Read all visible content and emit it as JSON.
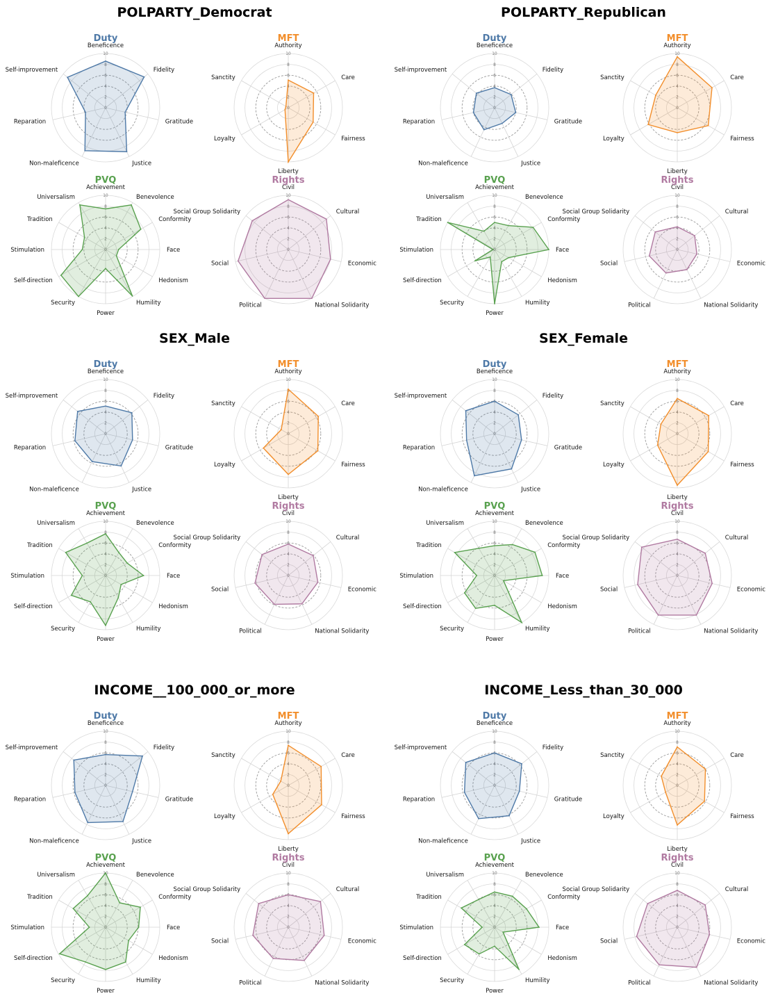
{
  "chart_data": [
    {
      "type": "radar-panel-group",
      "title": "POLPARTY_Democrat",
      "charts": [
        {
          "type": "radar",
          "title": "Duty",
          "color": "#4e79a7",
          "axes": [
            "Beneficence",
            "Fidelity",
            "Gratitude",
            "Justice",
            "Non-maleficence",
            "Reparation",
            "Self-improvement"
          ],
          "values": [
            8.6,
            9.1,
            3.7,
            9.0,
            8.8,
            3.8,
            9.0
          ],
          "ylim": [
            0,
            10
          ],
          "ticks": [
            0,
            2,
            4,
            6,
            8,
            10
          ]
        },
        {
          "type": "radar",
          "title": "MFT",
          "color": "#f28e2b",
          "axes": [
            "Authority",
            "Care",
            "Fairness",
            "Liberty",
            "Loyalty",
            "Sanctity"
          ],
          "values": [
            5.1,
            5.4,
            5.3,
            10.0,
            0.7,
            0.5
          ],
          "ylim": [
            0,
            10
          ],
          "ticks": [
            0,
            2,
            4,
            6,
            8,
            10
          ]
        },
        {
          "type": "radar",
          "title": "PVQ",
          "color": "#59a14f",
          "axes": [
            "Achievement",
            "Benevolence",
            "Conformity",
            "Face",
            "Hedonism",
            "Humility",
            "Power",
            "Security",
            "Self-direction",
            "Stimulation",
            "Tradition",
            "Universalism"
          ],
          "values": [
            7.5,
            9.5,
            7.5,
            2.4,
            2.3,
            9.9,
            3.5,
            10.0,
            9.5,
            4.3,
            4.5,
            9.5
          ],
          "ylim": [
            0,
            10
          ],
          "ticks": [
            0,
            2,
            4,
            6,
            8,
            10
          ]
        },
        {
          "type": "radar",
          "title": "Rights",
          "color": "#b07aa1",
          "axes": [
            "Civil",
            "Cultural",
            "Economic",
            "National Solidarity",
            "Political",
            "Social",
            "Social Group Solidarity"
          ],
          "values": [
            9.2,
            9.0,
            8.0,
            10.0,
            10.0,
            9.5,
            8.5
          ],
          "ylim": [
            0,
            10
          ],
          "ticks": [
            0,
            2,
            4,
            6,
            8,
            10
          ]
        }
      ]
    },
    {
      "type": "radar-panel-group",
      "title": "POLPARTY_Republican",
      "charts": [
        {
          "type": "radar",
          "title": "Duty",
          "color": "#4e79a7",
          "axes": [
            "Beneficence",
            "Fidelity",
            "Gratitude",
            "Justice",
            "Non-maleficence",
            "Reparation",
            "Self-improvement"
          ],
          "values": [
            3.7,
            3.9,
            4.0,
            3.2,
            4.5,
            4.0,
            4.3
          ],
          "ylim": [
            0,
            10
          ],
          "ticks": [
            0,
            2,
            4,
            6,
            8,
            10
          ]
        },
        {
          "type": "radar",
          "title": "MFT",
          "color": "#f28e2b",
          "axes": [
            "Authority",
            "Care",
            "Fairness",
            "Liberty",
            "Loyalty",
            "Sanctity"
          ],
          "values": [
            9.4,
            7.4,
            6.6,
            4.6,
            6.2,
            4.6
          ],
          "ylim": [
            0,
            10
          ],
          "ticks": [
            0,
            2,
            4,
            6,
            8,
            10
          ]
        },
        {
          "type": "radar",
          "title": "PVQ",
          "color": "#59a14f",
          "axes": [
            "Achievement",
            "Benevolence",
            "Conformity",
            "Face",
            "Hedonism",
            "Humility",
            "Power",
            "Security",
            "Self-direction",
            "Stimulation",
            "Tradition",
            "Universalism"
          ],
          "values": [
            5.0,
            5.1,
            8.2,
            10.0,
            3.0,
            2.6,
            10.0,
            1.6,
            4.2,
            0.3,
            10.0,
            3.9
          ],
          "ylim": [
            0,
            10
          ],
          "ticks": [
            0,
            2,
            4,
            6,
            8,
            10
          ]
        },
        {
          "type": "radar",
          "title": "Rights",
          "color": "#b07aa1",
          "axes": [
            "Civil",
            "Cultural",
            "Economic",
            "National Solidarity",
            "Political",
            "Social",
            "Social Group Solidarity"
          ],
          "values": [
            4.2,
            4.1,
            3.7,
            4.1,
            4.8,
            5.3,
            5.2
          ],
          "ylim": [
            0,
            10
          ],
          "ticks": [
            0,
            2,
            4,
            6,
            8,
            10
          ]
        }
      ]
    },
    {
      "type": "radar-panel-group",
      "title": "SEX_Male",
      "charts": [
        {
          "type": "radar",
          "title": "Duty",
          "color": "#4e79a7",
          "axes": [
            "Beneficence",
            "Fidelity",
            "Gratitude",
            "Justice",
            "Non-maleficence",
            "Reparation",
            "Self-improvement"
          ],
          "values": [
            5.1,
            6.2,
            5.1,
            6.6,
            5.7,
            5.8,
            6.6
          ],
          "ylim": [
            0,
            10
          ],
          "ticks": [
            0,
            2,
            4,
            6,
            8,
            10
          ]
        },
        {
          "type": "radar",
          "title": "MFT",
          "color": "#f28e2b",
          "axes": [
            "Authority",
            "Care",
            "Fairness",
            "Liberty",
            "Loyalty",
            "Sanctity"
          ],
          "values": [
            8.2,
            6.4,
            6.3,
            7.5,
            5.3,
            1.5
          ],
          "ylim": [
            0,
            10
          ],
          "ticks": [
            0,
            2,
            4,
            6,
            8,
            10
          ]
        },
        {
          "type": "radar",
          "title": "PVQ",
          "color": "#59a14f",
          "axes": [
            "Achievement",
            "Benevolence",
            "Conformity",
            "Face",
            "Hedonism",
            "Humility",
            "Power",
            "Security",
            "Self-direction",
            "Stimulation",
            "Tradition",
            "Universalism"
          ],
          "values": [
            7.7,
            4.9,
            4.6,
            7.0,
            3.3,
            4.7,
            9.2,
            5.6,
            7.3,
            4.3,
            8.5,
            6.9
          ],
          "ylim": [
            0,
            10
          ],
          "ticks": [
            0,
            2,
            4,
            6,
            8,
            10
          ]
        },
        {
          "type": "radar",
          "title": "Rights",
          "color": "#b07aa1",
          "axes": [
            "Civil",
            "Cultural",
            "Economic",
            "National Solidarity",
            "Political",
            "Social",
            "Social Group Solidarity"
          ],
          "values": [
            5.8,
            5.9,
            5.6,
            5.8,
            5.9,
            6.3,
            6.2
          ],
          "ylim": [
            0,
            10
          ],
          "ticks": [
            0,
            2,
            4,
            6,
            8,
            10
          ]
        }
      ]
    },
    {
      "type": "radar-panel-group",
      "title": "SEX_Female",
      "charts": [
        {
          "type": "radar",
          "title": "Duty",
          "color": "#4e79a7",
          "axes": [
            "Beneficence",
            "Fidelity",
            "Gratitude",
            "Justice",
            "Non-maleficence",
            "Reparation",
            "Self-improvement"
          ],
          "values": [
            6.0,
            5.6,
            5.1,
            7.2,
            8.6,
            5.3,
            6.8
          ],
          "ylim": [
            0,
            10
          ],
          "ticks": [
            0,
            2,
            4,
            6,
            8,
            10
          ]
        },
        {
          "type": "radar",
          "title": "MFT",
          "color": "#f28e2b",
          "axes": [
            "Authority",
            "Care",
            "Fairness",
            "Liberty",
            "Loyalty",
            "Sanctity"
          ],
          "values": [
            6.5,
            6.7,
            6.6,
            9.5,
            4.2,
            3.5
          ],
          "ylim": [
            0,
            10
          ],
          "ticks": [
            0,
            2,
            4,
            6,
            8,
            10
          ]
        },
        {
          "type": "radar",
          "title": "PVQ",
          "color": "#59a14f",
          "axes": [
            "Achievement",
            "Benevolence",
            "Conformity",
            "Face",
            "Hedonism",
            "Humility",
            "Power",
            "Security",
            "Self-direction",
            "Stimulation",
            "Tradition",
            "Universalism"
          ],
          "values": [
            5.5,
            6.6,
            8.6,
            8.8,
            1.9,
            10.0,
            5.5,
            7.0,
            6.4,
            3.3,
            8.5,
            5.8
          ],
          "ylim": [
            0,
            10
          ],
          "ticks": [
            0,
            2,
            4,
            6,
            8,
            10
          ]
        },
        {
          "type": "radar",
          "title": "Rights",
          "color": "#b07aa1",
          "axes": [
            "Civil",
            "Cultural",
            "Economic",
            "National Solidarity",
            "Political",
            "Social",
            "Social Group Solidarity"
          ],
          "values": [
            6.7,
            6.6,
            6.6,
            8.1,
            8.1,
            7.5,
            8.4
          ],
          "ylim": [
            0,
            10
          ],
          "ticks": [
            0,
            2,
            4,
            6,
            8,
            10
          ]
        }
      ]
    },
    {
      "type": "radar-panel-group",
      "title": "INCOME__100_000_or_more",
      "charts": [
        {
          "type": "radar",
          "title": "Duty",
          "color": "#4e79a7",
          "axes": [
            "Beneficence",
            "Fidelity",
            "Gratitude",
            "Justice",
            "Non-maleficence",
            "Reparation",
            "Self-improvement"
          ],
          "values": [
            5.7,
            8.7,
            5.1,
            7.4,
            7.6,
            5.8,
            7.5
          ],
          "ylim": [
            0,
            10
          ],
          "ticks": [
            0,
            2,
            4,
            6,
            8,
            10
          ]
        },
        {
          "type": "radar",
          "title": "MFT",
          "color": "#f28e2b",
          "axes": [
            "Authority",
            "Care",
            "Fairness",
            "Liberty",
            "Loyalty",
            "Sanctity"
          ],
          "values": [
            7.4,
            7.0,
            7.1,
            8.9,
            3.3,
            1.6
          ],
          "ylim": [
            0,
            10
          ],
          "ticks": [
            0,
            2,
            4,
            6,
            8,
            10
          ]
        },
        {
          "type": "radar",
          "title": "PVQ",
          "color": "#59a14f",
          "axes": [
            "Achievement",
            "Benevolence",
            "Conformity",
            "Face",
            "Hedonism",
            "Humility",
            "Power",
            "Security",
            "Self-direction",
            "Stimulation",
            "Tradition",
            "Universalism"
          ],
          "values": [
            10.0,
            5.2,
            7.4,
            6.1,
            4.9,
            7.4,
            7.8,
            7.4,
            9.8,
            3.0,
            6.9,
            6.7
          ],
          "ylim": [
            0,
            10
          ],
          "ticks": [
            0,
            2,
            4,
            6,
            8,
            10
          ]
        },
        {
          "type": "radar",
          "title": "Rights",
          "color": "#b07aa1",
          "axes": [
            "Civil",
            "Cultural",
            "Economic",
            "National Solidarity",
            "Political",
            "Social",
            "Social Group Solidarity"
          ],
          "values": [
            6.0,
            7.6,
            6.8,
            6.8,
            6.4,
            6.7,
            7.0
          ],
          "ylim": [
            0,
            10
          ],
          "ticks": [
            0,
            2,
            4,
            6,
            8,
            10
          ]
        }
      ]
    },
    {
      "type": "radar-panel-group",
      "title": "INCOME_Less_than_30_000",
      "charts": [
        {
          "type": "radar",
          "title": "Duty",
          "color": "#4e79a7",
          "axes": [
            "Beneficence",
            "Fidelity",
            "Gratitude",
            "Justice",
            "Non-maleficence",
            "Reparation",
            "Self-improvement"
          ],
          "values": [
            6.0,
            6.4,
            4.7,
            6.2,
            6.8,
            5.7,
            6.8
          ],
          "ylim": [
            0,
            10
          ],
          "ticks": [
            0,
            2,
            4,
            6,
            8,
            10
          ]
        },
        {
          "type": "radar",
          "title": "MFT",
          "color": "#f28e2b",
          "axes": [
            "Authority",
            "Care",
            "Fairness",
            "Liberty",
            "Loyalty",
            "Sanctity"
          ],
          "values": [
            7.1,
            6.0,
            5.8,
            7.3,
            2.5,
            3.4
          ],
          "ylim": [
            0,
            10
          ],
          "ticks": [
            0,
            2,
            4,
            6,
            8,
            10
          ]
        },
        {
          "type": "radar",
          "title": "PVQ",
          "color": "#59a14f",
          "axes": [
            "Achievement",
            "Benevolence",
            "Conformity",
            "Face",
            "Hedonism",
            "Humility",
            "Power",
            "Security",
            "Self-direction",
            "Stimulation",
            "Tradition",
            "Universalism"
          ],
          "values": [
            6.5,
            6.6,
            6.8,
            8.2,
            1.8,
            9.0,
            3.5,
            5.7,
            6.4,
            2.3,
            7.1,
            5.9
          ],
          "ylim": [
            0,
            10
          ],
          "ticks": [
            0,
            2,
            4,
            6,
            8,
            10
          ]
        },
        {
          "type": "radar",
          "title": "Rights",
          "color": "#b07aa1",
          "axes": [
            "Civil",
            "Cultural",
            "Economic",
            "National Solidarity",
            "Political",
            "Social",
            "Social Group Solidarity"
          ],
          "values": [
            6.8,
            6.6,
            6.1,
            8.2,
            7.7,
            7.7,
            7.0
          ],
          "ylim": [
            0,
            10
          ],
          "ticks": [
            0,
            2,
            4,
            6,
            8,
            10
          ]
        }
      ]
    }
  ]
}
